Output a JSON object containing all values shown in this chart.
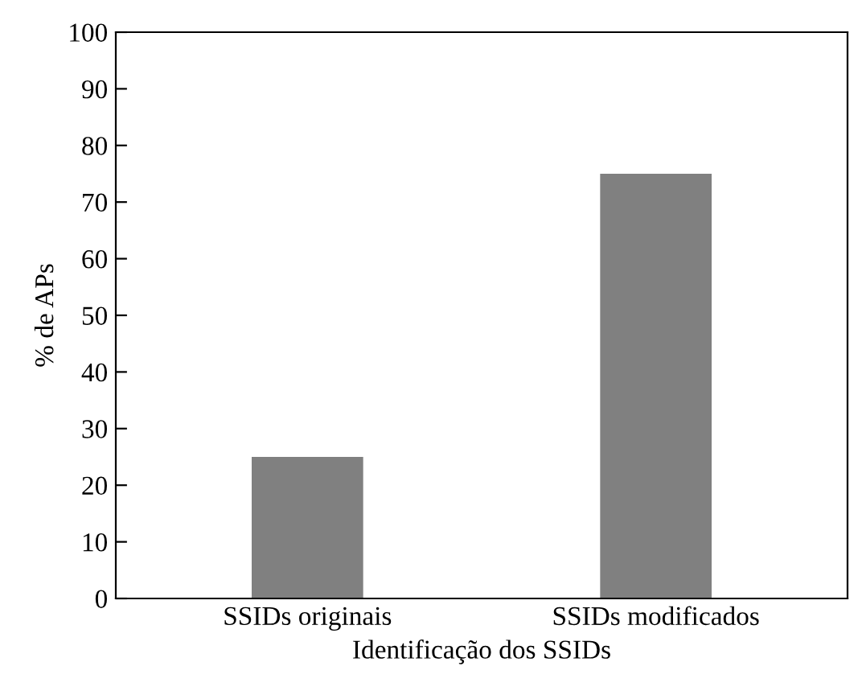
{
  "chart_data": {
    "type": "bar",
    "xlabel": "Identificação dos SSIDs",
    "ylabel": "% de APs",
    "categories": [
      "SSIDs originais",
      "SSIDs modificados"
    ],
    "values": [
      25,
      75
    ],
    "color": "#808080",
    "ylim": [
      0,
      100
    ],
    "yticks": [
      0,
      10,
      20,
      30,
      40,
      50,
      60,
      70,
      80,
      90,
      100
    ],
    "grid": false,
    "legend": false
  }
}
